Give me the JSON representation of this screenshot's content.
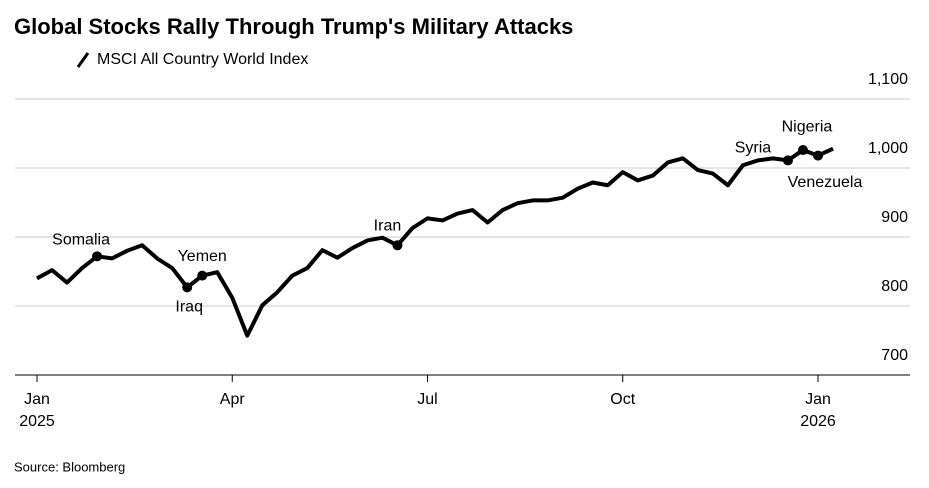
{
  "chart_data": {
    "type": "line",
    "title": "Global Stocks Rally Through Trump's Military Attacks",
    "source": "Source: Bloomberg",
    "categories": [
      "Jan\n2025",
      null,
      null,
      null,
      null,
      null,
      null,
      null,
      null,
      null,
      null,
      null,
      null,
      "Apr",
      null,
      null,
      null,
      null,
      null,
      null,
      null,
      null,
      null,
      null,
      null,
      null,
      "Jul",
      null,
      null,
      null,
      null,
      null,
      null,
      null,
      null,
      null,
      null,
      null,
      null,
      "Oct",
      null,
      null,
      null,
      null,
      null,
      null,
      null,
      null,
      null,
      null,
      null,
      null,
      "Jan\n2026",
      null
    ],
    "series": [
      {
        "name": "MSCI All Country World Index",
        "color": "#000000",
        "values": [
          840,
          852,
          834,
          855,
          872,
          869,
          880,
          888,
          869,
          855,
          827,
          844,
          849,
          812,
          757,
          801,
          820,
          844,
          855,
          881,
          870,
          884,
          895,
          899,
          888,
          913,
          927,
          924,
          934,
          939,
          921,
          939,
          949,
          953,
          953,
          957,
          970,
          979,
          975,
          994,
          982,
          989,
          1008,
          1014,
          997,
          992,
          975,
          1004,
          1011,
          1014,
          1011,
          1026,
          1018,
          1028
        ]
      }
    ],
    "annotations": [
      null,
      null,
      null,
      null,
      "Somalia",
      null,
      null,
      null,
      null,
      null,
      "Iraq",
      "Yemen",
      null,
      null,
      null,
      null,
      null,
      null,
      null,
      null,
      null,
      null,
      null,
      null,
      "Iran",
      null,
      null,
      null,
      null,
      null,
      null,
      null,
      null,
      null,
      null,
      null,
      null,
      null,
      null,
      null,
      null,
      null,
      null,
      null,
      null,
      null,
      null,
      null,
      null,
      null,
      "Syria",
      "Nigeria",
      "Venezuela",
      null
    ],
    "ylim": [
      700,
      1100
    ],
    "yticks": [
      700,
      800,
      900,
      {
        "value": 1000,
        "label": "1,000"
      },
      {
        "value": 1100,
        "label": "1,100"
      }
    ],
    "grid": true,
    "legend": "top-left"
  }
}
